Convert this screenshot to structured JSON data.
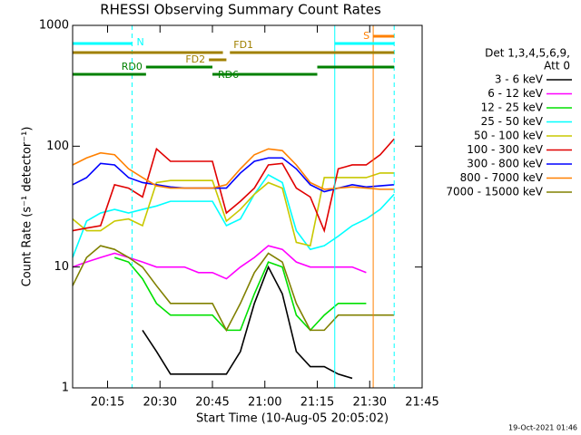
{
  "chart_data": {
    "type": "line",
    "title": "RHESSI Observing Summary Count Rates",
    "xlabel": "Start Time (10-Aug-05 20:05:02)",
    "ylabel": "Count Rate (s⁻¹ detector⁻¹)",
    "timestamp": "19-Oct-2021 01:46",
    "legend_header": [
      "Det 1,3,4,5,6,9,",
      "Att 0"
    ],
    "ylog": true,
    "xlim": [
      0,
      100
    ],
    "ylim": [
      1,
      1000
    ],
    "xticks": [
      {
        "value": 10,
        "label": "20:15"
      },
      {
        "value": 25,
        "label": "20:30"
      },
      {
        "value": 40,
        "label": "20:45"
      },
      {
        "value": 55,
        "label": "21:00"
      },
      {
        "value": 70,
        "label": "21:15"
      },
      {
        "value": 85,
        "label": "21:30"
      },
      {
        "value": 100,
        "label": "21:45"
      }
    ],
    "yticks": [
      1,
      10,
      100,
      1000
    ],
    "x": [
      0,
      4,
      8,
      12,
      16,
      20,
      24,
      28,
      32,
      36,
      40,
      44,
      48,
      52,
      56,
      60,
      64,
      68,
      72,
      76,
      80,
      84,
      88,
      92
    ],
    "series": [
      {
        "name": "3 - 6 keV",
        "color": "#000000",
        "values": [
          null,
          null,
          null,
          null,
          null,
          3,
          2,
          1.3,
          1.3,
          1.3,
          1.3,
          1.3,
          2,
          5,
          10,
          6,
          2,
          1.5,
          1.5,
          1.3,
          1.2,
          null,
          null,
          null
        ]
      },
      {
        "name": "6 - 12 keV",
        "color": "#ff00ff",
        "values": [
          10,
          11,
          12,
          13,
          12,
          11,
          10,
          10,
          10,
          9,
          9,
          8,
          10,
          12,
          15,
          14,
          11,
          10,
          10,
          10,
          10,
          9,
          null,
          null
        ]
      },
      {
        "name": "12 - 25 keV",
        "color": "#00e000",
        "values": [
          null,
          null,
          null,
          12,
          11,
          8,
          5,
          4,
          4,
          4,
          4,
          3,
          3,
          6,
          11,
          10,
          4,
          3,
          4,
          5,
          5,
          5,
          null,
          null
        ]
      },
      {
        "name": "25 - 50 keV",
        "color": "#00ffff",
        "values": [
          12,
          24,
          28,
          30,
          28,
          30,
          32,
          35,
          35,
          35,
          35,
          22,
          25,
          40,
          58,
          50,
          20,
          14,
          15,
          18,
          22,
          25,
          30,
          40
        ]
      },
      {
        "name": "50 - 100 keV",
        "color": "#c8c800",
        "values": [
          25,
          20,
          20,
          24,
          25,
          22,
          50,
          52,
          52,
          52,
          52,
          24,
          30,
          40,
          50,
          45,
          16,
          15,
          55,
          55,
          55,
          55,
          60,
          60
        ]
      },
      {
        "name": "100 - 300 keV",
        "color": "#e00000",
        "values": [
          20,
          21,
          22,
          48,
          45,
          38,
          95,
          75,
          75,
          75,
          75,
          28,
          35,
          45,
          70,
          72,
          45,
          38,
          20,
          65,
          70,
          70,
          85,
          115
        ]
      },
      {
        "name": "300 - 800 keV",
        "color": "#0000ff",
        "values": [
          48,
          55,
          72,
          70,
          55,
          50,
          48,
          46,
          45,
          45,
          45,
          45,
          60,
          75,
          80,
          80,
          65,
          48,
          42,
          45,
          48,
          46,
          47,
          48
        ]
      },
      {
        "name": "800 - 7000 keV",
        "color": "#ff8000",
        "values": [
          70,
          80,
          88,
          85,
          65,
          55,
          47,
          45,
          45,
          45,
          45,
          48,
          65,
          85,
          95,
          92,
          70,
          50,
          44,
          45,
          46,
          45,
          44,
          44
        ]
      },
      {
        "name": "7000 - 15000 keV",
        "color": "#808000",
        "values": [
          7,
          12,
          15,
          14,
          12,
          10,
          7,
          5,
          5,
          5,
          5,
          3,
          5,
          9,
          13,
          11,
          5,
          3,
          3,
          4,
          4,
          4,
          4,
          4
        ]
      }
    ],
    "flags": [
      {
        "name": "N",
        "color": "#00ffff",
        "segments": [
          [
            0,
            17
          ],
          [
            75,
            92
          ]
        ]
      },
      {
        "name": "S",
        "color": "#ff8000",
        "segments": [
          [
            86,
            92
          ]
        ]
      },
      {
        "name": "FD1",
        "color": "#a08000",
        "segments": [
          [
            0,
            43
          ],
          [
            45,
            92
          ]
        ]
      },
      {
        "name": "FD2",
        "color": "#a08000",
        "segments": [
          [
            39,
            44
          ]
        ]
      },
      {
        "name": "RD0",
        "color": "#008000",
        "segments": [
          [
            21,
            40
          ],
          [
            70,
            92
          ]
        ]
      },
      {
        "name": "RD6",
        "color": "#008000",
        "segments": [
          [
            0,
            21
          ],
          [
            40,
            70
          ]
        ]
      }
    ],
    "vlines": [
      {
        "x": 17,
        "color": "#00ffff",
        "dashed": true
      },
      {
        "x": 75,
        "color": "#00ffff",
        "dashed": false
      },
      {
        "x": 86,
        "color": "#ff8000",
        "dashed": false
      },
      {
        "x": 92,
        "color": "#00ffff",
        "dashed": true
      }
    ]
  }
}
